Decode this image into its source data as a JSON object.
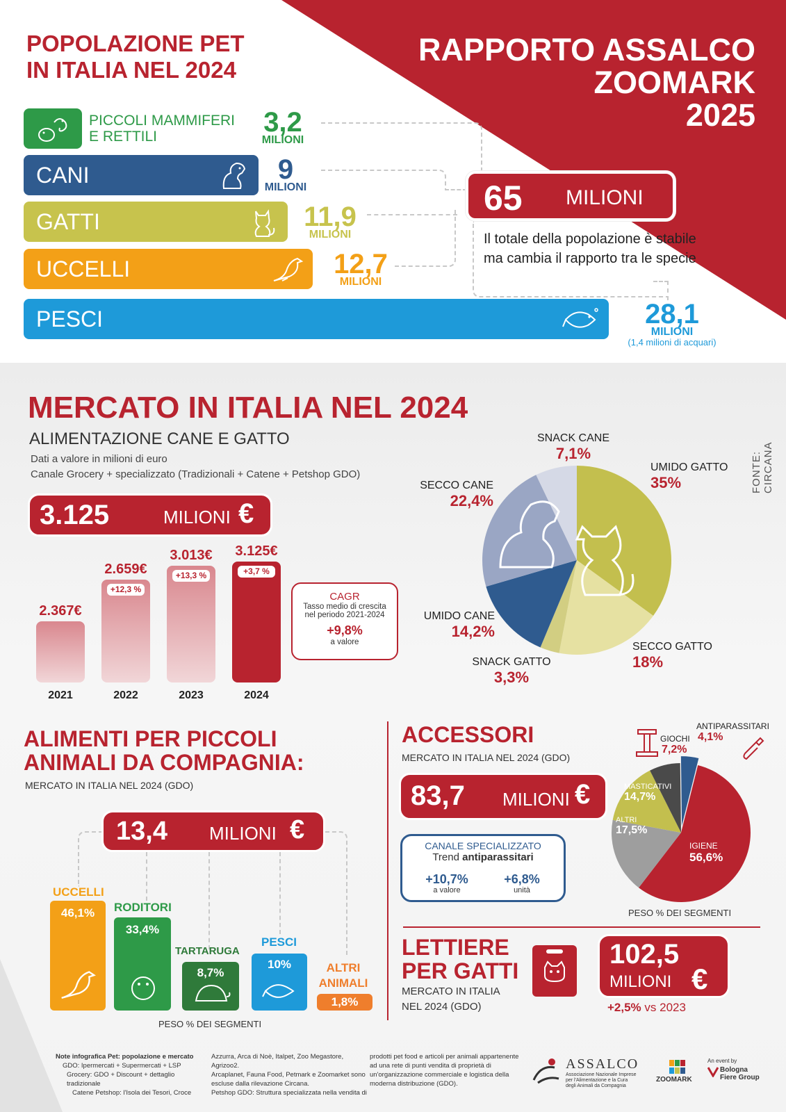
{
  "header": {
    "left_title": [
      "POPOLAZIONE PET",
      "IN ITALIA NEL 2024"
    ],
    "right_title": [
      "RAPPORTO ASSALCO",
      "ZOOMARK",
      "2025"
    ]
  },
  "population": {
    "small_mammals": {
      "label1": "PICCOLI MAMMIFERI",
      "label2": "E RETTILI",
      "value": "3,2",
      "unit": "MILIONI",
      "value_millions": 3.2,
      "color": "#2e9a48"
    },
    "dogs": {
      "label": "CANI",
      "value": "9",
      "unit": "MILIONI",
      "value_millions": 9,
      "color": "#2f5b8f"
    },
    "cats": {
      "label": "GATTI",
      "value": "11,9",
      "unit": "MILIONI",
      "value_millions": 11.9,
      "color": "#c7c34d"
    },
    "birds": {
      "label": "UCCELLI",
      "value": "12,7",
      "unit": "MILIONI",
      "value_millions": 12.7,
      "color": "#f3a017"
    },
    "fish": {
      "label": "PESCI",
      "value": "28,1",
      "unit": "MILIONI",
      "note": "(1,4 milioni di acquari)",
      "value_millions": 28.1,
      "color": "#1e9ad9"
    },
    "total": {
      "value": "65",
      "unit": "MILIONI",
      "note1": "Il totale della popolazione è stabile",
      "note2": "ma cambia il rapporto tra le specie"
    }
  },
  "market": {
    "title": "MERCATO IN ITALIA NEL 2024",
    "subtitle": "ALIMENTAZIONE CANE E GATTO",
    "desc1": "Dati a valore in milioni di euro",
    "desc2": "Canale Grocery + specializzato (Tradizionali + Catene + Petshop GDO)",
    "total_value": "3.125",
    "total_unit": "MILIONI",
    "currency": "€",
    "source": "FONTE: CIRCANA",
    "years": [
      {
        "year": "2021",
        "label": "2.367€",
        "value": 2367,
        "growth": ""
      },
      {
        "year": "2022",
        "label": "2.659€",
        "value": 2659,
        "growth": "+12,3 %"
      },
      {
        "year": "2023",
        "label": "3.013€",
        "value": 3013,
        "growth": "+13,3 %"
      },
      {
        "year": "2024",
        "label": "3.125€",
        "value": 3125,
        "growth": "+3,7 %"
      }
    ],
    "cagr": {
      "title": "CAGR",
      "desc1": "Tasso medio di crescita",
      "desc2": "nel periodo 2021-2024",
      "value": "+9,8%",
      "note": "a valore"
    }
  },
  "chart_data": {
    "type": "pie",
    "slices": [
      {
        "label": "UMIDO GATTO",
        "value": 35,
        "text": "35%",
        "color": "#c3bf4e"
      },
      {
        "label": "SECCO GATTO",
        "value": 18,
        "text": "18%",
        "color": "#e6e1a2"
      },
      {
        "label": "SNACK GATTO",
        "value": 3.3,
        "text": "3,3%",
        "color": "#d2ce82"
      },
      {
        "label": "UMIDO CANE",
        "value": 14.2,
        "text": "14,2%",
        "color": "#2f5b8f"
      },
      {
        "label": "SECCO CANE",
        "value": 22.4,
        "text": "22,4%",
        "color": "#9aa6c4"
      },
      {
        "label": "SNACK CANE",
        "value": 7.1,
        "text": "7,1%",
        "color": "#d5d9e6"
      }
    ]
  },
  "small_pets": {
    "title1": "ALIMENTI PER PICCOLI",
    "title2": "ANIMALI DA COMPAGNIA:",
    "subtitle": "MERCATO IN ITALIA NEL 2024 (GDO)",
    "total_value": "13,4",
    "total_unit": "MILIONI",
    "currency": "€",
    "footer": "PESO % DEI SEGMENTI",
    "segments": [
      {
        "name": "UCCELLI",
        "text": "46,1%",
        "value": 46.1,
        "color": "#f3a017"
      },
      {
        "name": "RODITORI",
        "text": "33,4%",
        "value": 33.4,
        "color": "#2e9a48"
      },
      {
        "name": "TARTARUGA",
        "text": "8,7%",
        "value": 8.7,
        "color": "#2f7a3a"
      },
      {
        "name": "PESCI",
        "text": "10%",
        "value": 10,
        "color": "#1e9ad9"
      },
      {
        "name": "ALTRI ANIMALI",
        "name1": "ALTRI",
        "name2": "ANIMALI",
        "text": "1,8%",
        "value": 1.8,
        "color": "#ef7e2c"
      }
    ]
  },
  "accessories": {
    "title": "ACCESSORI",
    "subtitle": "MERCATO IN ITALIA NEL 2024 (GDO)",
    "total_value": "83,7",
    "total_unit": "MILIONI",
    "currency": "€",
    "channel_title": "CANALE SPECIALIZZATO",
    "channel_trend": "Trend",
    "channel_trend_bold": "antiparassitari",
    "value_growth": "+10,7%",
    "value_note": "a valore",
    "unit_growth": "+6,8%",
    "unit_note": "unità",
    "footer": "PESO % DEI SEGMENTI",
    "segments": [
      {
        "name": "IGIENE",
        "text": "56,6%",
        "value": 56.6,
        "color": "#b8232f"
      },
      {
        "name": "ALTRI",
        "text": "17,5%",
        "value": 17.5,
        "color": "#9e9e9e"
      },
      {
        "name": "MASTICATIVI",
        "text": "14,7%",
        "value": 14.7,
        "color": "#c3bf4e"
      },
      {
        "name": "GIOCHI",
        "text": "7,2%",
        "value": 7.2,
        "color": "#4a4a4a"
      },
      {
        "name": "ANTIPARASSITARI",
        "text": "4,1%",
        "value": 4.1,
        "color": "#2f5b8f"
      }
    ]
  },
  "litter": {
    "title1": "LETTIERE",
    "title2": "PER GATTI",
    "subtitle1": "MERCATO IN ITALIA",
    "subtitle2": "NEL 2024 (GDO)",
    "value": "102,5",
    "unit": "MILIONI",
    "currency": "€",
    "growth": "+2,5%",
    "growth_note": "vs 2023"
  },
  "footer": {
    "notes_title": "Note infografica Pet: popolazione e mercato",
    "col1": [
      "GDO: Ipermercati + Supermercati + LSP",
      "Grocery: GDO + Discount + dettaglio tradizionale",
      "Catene Petshop: l'Isola dei Tesori, Croce"
    ],
    "col2": [
      "Azzurra, Arca di Noè, Italpet, Zoo Megastore, Agrizoo2.",
      "Arcaplanet, Fauna Food, Petmark e Zoomarket sono",
      "escluse dalla rilevazione Circana.",
      "Petshop GDO: Struttura specializzata nella vendita di"
    ],
    "col3": [
      "prodotti pet food e articoli per animali appartenente",
      "ad una rete di punti vendita di proprietà di",
      "un'organizzazione commerciale e logistica della",
      "moderna distribuzione (GDO)."
    ],
    "assalco": "ASSALCO",
    "assalco_sub1": "Associazione Nazionale Imprese",
    "assalco_sub2": "per l'Alimentazione e la Cura",
    "assalco_sub3": "degli Animali da Compagnia",
    "zoomark": "ZOOMARK",
    "event_by": "An event by",
    "bologna1": "Bologna",
    "bologna2": "Fiere Group"
  }
}
